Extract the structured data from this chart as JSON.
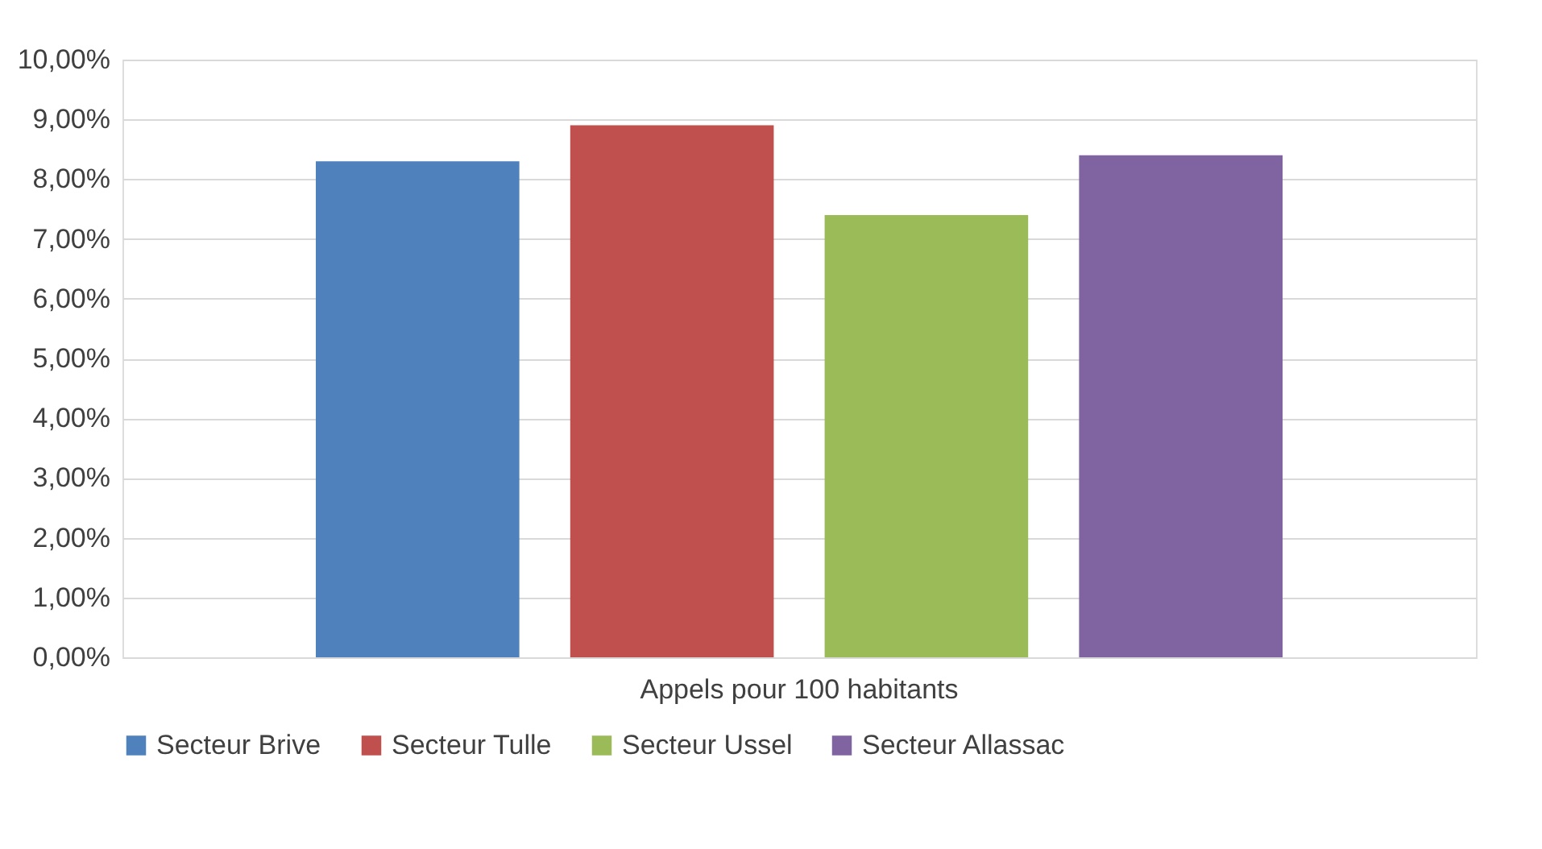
{
  "chart_data": {
    "type": "bar",
    "categories": [
      "Appels pour 100 habitants"
    ],
    "series": [
      {
        "name": "Secteur Brive",
        "color": "#4f81bd",
        "values": [
          8.3
        ]
      },
      {
        "name": "Secteur Tulle",
        "color": "#c0504d",
        "values": [
          8.9
        ]
      },
      {
        "name": "Secteur Ussel",
        "color": "#9bbb59",
        "values": [
          7.4
        ]
      },
      {
        "name": "Secteur Allassac",
        "color": "#8064a2",
        "values": [
          8.4
        ]
      }
    ],
    "ylim": [
      0,
      10
    ],
    "yticks": [
      {
        "value": 0,
        "label": "0,00%"
      },
      {
        "value": 1,
        "label": "1,00%"
      },
      {
        "value": 2,
        "label": "2,00%"
      },
      {
        "value": 3,
        "label": "3,00%"
      },
      {
        "value": 4,
        "label": "4,00%"
      },
      {
        "value": 5,
        "label": "5,00%"
      },
      {
        "value": 6,
        "label": "6,00%"
      },
      {
        "value": 7,
        "label": "7,00%"
      },
      {
        "value": 8,
        "label": "8,00%"
      },
      {
        "value": 9,
        "label": "9,00%"
      },
      {
        "value": 10,
        "label": "10,00%"
      }
    ],
    "grid": "y",
    "legend": "bottom"
  }
}
